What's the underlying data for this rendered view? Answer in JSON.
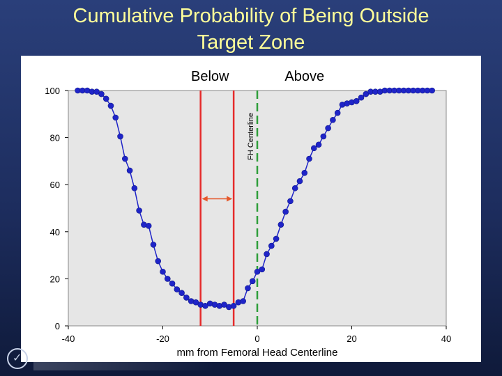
{
  "slide": {
    "title_line1": "Cumulative Probability of Being Outside",
    "title_line2": "Target Zone"
  },
  "chart_data": {
    "type": "scatter",
    "title": "",
    "xlabel": "mm from Femoral Head Centerline",
    "ylabel": "",
    "xlim": [
      -40,
      40
    ],
    "ylim": [
      0,
      100
    ],
    "xticks": [
      -40,
      -20,
      0,
      20,
      40
    ],
    "yticks": [
      0,
      20,
      40,
      60,
      80,
      100
    ],
    "grid": false,
    "colors": {
      "plot_bg": "#e6e6e6",
      "points": "#1f24c8",
      "line": "#1f24c8",
      "target_lines": "#e52b2b",
      "centerline": "#2e9e3a",
      "arrow": "#e5582b"
    },
    "region_labels": {
      "left": "Below",
      "right": "Above"
    },
    "centerline_label": "FH Centerline",
    "centerline_x": 0,
    "target_bounds": [
      -12,
      -5
    ],
    "series": [
      {
        "x": [
          -38,
          -37,
          -36,
          -35,
          -34,
          -33,
          -32,
          -31,
          -30,
          -29,
          -28,
          -27,
          -26,
          -25,
          -24,
          -23,
          -22,
          -21,
          -20,
          -19,
          -18,
          -17,
          -16,
          -15,
          -14,
          -13,
          -12,
          -11,
          -10,
          -9,
          -8,
          -7,
          -6,
          -5,
          -4,
          -3,
          -2,
          -1,
          0,
          1,
          2,
          3,
          4,
          5,
          6,
          7,
          8,
          9,
          10,
          11,
          12,
          13,
          14,
          15,
          16,
          17,
          18,
          19,
          20,
          21,
          22,
          23,
          24,
          25,
          26,
          27,
          28,
          29,
          30,
          31,
          32,
          33,
          34,
          35,
          36,
          37
        ],
        "values": [
          100,
          100,
          100,
          99.5,
          99.5,
          98.5,
          96.5,
          93.5,
          88.5,
          80.5,
          71,
          66,
          58.5,
          49,
          43,
          42.5,
          34.5,
          27.5,
          23,
          20,
          18,
          15.5,
          14,
          12,
          10.5,
          10,
          9,
          8.5,
          9.5,
          9,
          8.5,
          9,
          8,
          8.5,
          10,
          10.5,
          16,
          19,
          23,
          24,
          30.5,
          34,
          37,
          43,
          48.5,
          53,
          58.5,
          61.5,
          65,
          71,
          75.5,
          77,
          80.5,
          84,
          87.5,
          90.5,
          94,
          94.5,
          95,
          95.5,
          97,
          98.5,
          99.5,
          99.5,
          99.5,
          100,
          100,
          100,
          100,
          100,
          100,
          100,
          100,
          100,
          100,
          100
        ]
      }
    ]
  }
}
